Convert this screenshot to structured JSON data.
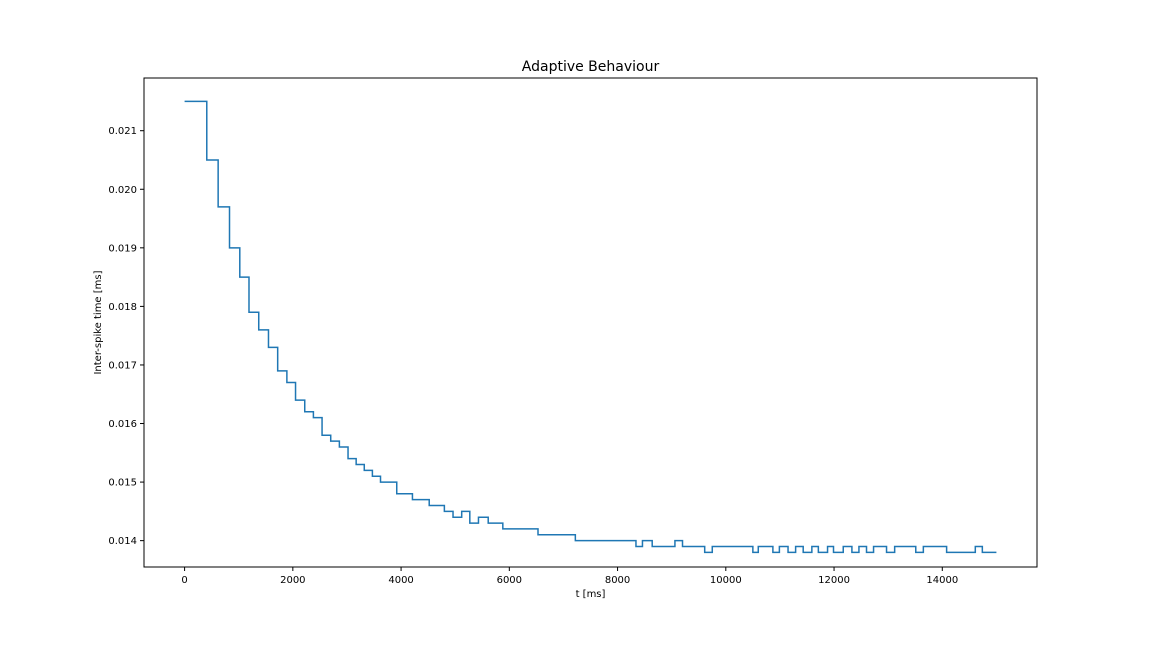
{
  "chart_data": {
    "type": "line",
    "drawstyle": "steps-post",
    "title": "Adaptive Behaviour",
    "xlabel": "t [ms]",
    "ylabel": "Inter-spike time [ms]",
    "xlim": [
      -750,
      15750
    ],
    "ylim": [
      0.01355,
      0.0219
    ],
    "xticks": [
      0,
      2000,
      4000,
      6000,
      8000,
      10000,
      12000,
      14000
    ],
    "xtick_labels": [
      "0",
      "2000",
      "4000",
      "6000",
      "8000",
      "10000",
      "12000",
      "14000"
    ],
    "yticks": [
      0.014,
      0.015,
      0.016,
      0.017,
      0.018,
      0.019,
      0.02,
      0.021
    ],
    "ytick_labels": [
      "0.014",
      "0.015",
      "0.016",
      "0.017",
      "0.018",
      "0.019",
      "0.020",
      "0.021"
    ],
    "grid": false,
    "line_color": "#1f77b4",
    "series": [
      {
        "x": [
          0,
          410,
          620,
          830,
          1020,
          1190,
          1370,
          1550,
          1720,
          1890,
          2050,
          2220,
          2380,
          2540,
          2700,
          2860,
          3020,
          3170,
          3320,
          3470,
          3620,
          3920,
          4210,
          4520,
          4800,
          4960,
          5120,
          5270,
          5430,
          5610,
          5880,
          6530,
          7220,
          8340,
          8460,
          8640,
          9060,
          9200,
          9610,
          9750,
          10500,
          10600,
          10870,
          10990,
          11150,
          11290,
          11430,
          11590,
          11710,
          11880,
          11990,
          12170,
          12330,
          12460,
          12600,
          12730,
          12970,
          13120,
          13510,
          13650,
          14080,
          14230,
          14610,
          14740,
          15000
        ],
        "y": [
          0.0215,
          0.0205,
          0.0197,
          0.019,
          0.0185,
          0.0179,
          0.0176,
          0.0173,
          0.0169,
          0.0167,
          0.0164,
          0.0162,
          0.0161,
          0.0158,
          0.0157,
          0.0156,
          0.0154,
          0.0153,
          0.0152,
          0.0151,
          0.015,
          0.0148,
          0.0147,
          0.0146,
          0.0145,
          0.0144,
          0.0145,
          0.0143,
          0.0144,
          0.0143,
          0.0142,
          0.0141,
          0.014,
          0.0139,
          0.014,
          0.0139,
          0.014,
          0.0139,
          0.0138,
          0.0139,
          0.0138,
          0.0139,
          0.0138,
          0.0139,
          0.0138,
          0.0139,
          0.0138,
          0.0139,
          0.0138,
          0.0139,
          0.0138,
          0.0139,
          0.0138,
          0.0139,
          0.0138,
          0.0139,
          0.0138,
          0.0139,
          0.0138,
          0.0139,
          0.0138,
          0.0138,
          0.0139,
          0.0138,
          0.0138
        ]
      }
    ]
  }
}
